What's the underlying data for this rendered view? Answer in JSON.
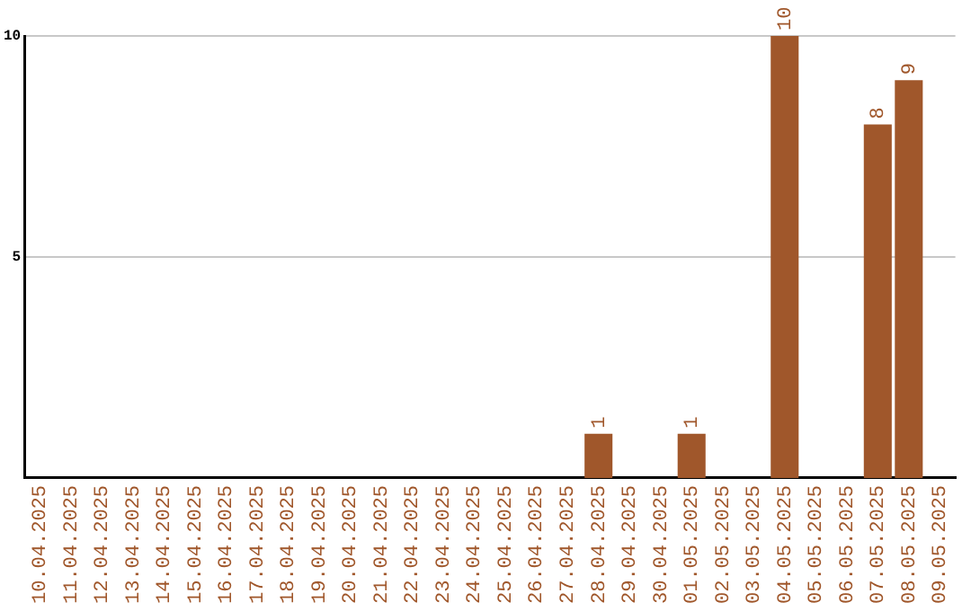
{
  "chart_data": {
    "type": "bar",
    "categories": [
      "10.04.2025",
      "11.04.2025",
      "12.04.2025",
      "13.04.2025",
      "14.04.2025",
      "15.04.2025",
      "16.04.2025",
      "17.04.2025",
      "18.04.2025",
      "19.04.2025",
      "20.04.2025",
      "21.04.2025",
      "22.04.2025",
      "23.04.2025",
      "24.04.2025",
      "25.04.2025",
      "26.04.2025",
      "27.04.2025",
      "28.04.2025",
      "29.04.2025",
      "30.04.2025",
      "01.05.2025",
      "02.05.2025",
      "03.05.2025",
      "04.05.2025",
      "05.05.2025",
      "06.05.2025",
      "07.05.2025",
      "08.05.2025",
      "09.05.2025"
    ],
    "values": [
      0,
      0,
      0,
      0,
      0,
      0,
      0,
      0,
      0,
      0,
      0,
      0,
      0,
      0,
      0,
      0,
      0,
      0,
      1,
      0,
      0,
      1,
      0,
      0,
      10,
      0,
      0,
      8,
      9,
      0
    ],
    "value_labels": [
      null,
      null,
      null,
      null,
      null,
      null,
      null,
      null,
      null,
      null,
      null,
      null,
      null,
      null,
      null,
      null,
      null,
      null,
      "1",
      null,
      null,
      "1",
      null,
      null,
      "10",
      null,
      null,
      "8",
      "9",
      null
    ],
    "color": "#a0572b",
    "ylim": [
      0,
      10
    ],
    "yticks": [
      5,
      10
    ],
    "grid": "y",
    "legend": false
  }
}
